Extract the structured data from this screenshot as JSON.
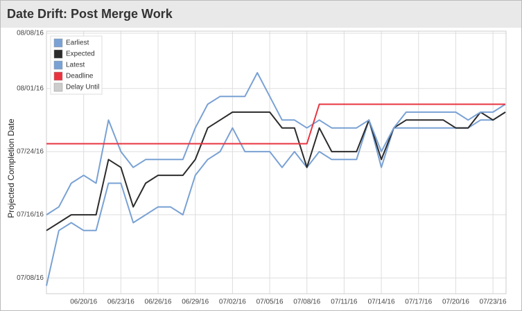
{
  "chart_data": {
    "type": "line",
    "title": "Date Drift: Post Merge Work",
    "y_label": "Projected Completion Date",
    "x": [
      "06/17/16",
      "06/18/16",
      "06/19/16",
      "06/20/16",
      "06/21/16",
      "06/22/16",
      "06/23/16",
      "06/24/16",
      "06/25/16",
      "06/26/16",
      "06/27/16",
      "06/28/16",
      "06/29/16",
      "06/30/16",
      "07/01/16",
      "07/02/16",
      "07/03/16",
      "07/04/16",
      "07/05/16",
      "07/06/16",
      "07/07/16",
      "07/08/16",
      "07/09/16",
      "07/10/16",
      "07/11/16",
      "07/12/16",
      "07/13/16",
      "07/14/16",
      "07/15/16",
      "07/16/16",
      "07/17/16",
      "07/18/16",
      "07/19/16",
      "07/20/16",
      "07/21/16",
      "07/22/16",
      "07/23/16",
      "07/24/16"
    ],
    "xticks": [
      "06/20/16",
      "06/23/16",
      "06/26/16",
      "06/29/16",
      "07/02/16",
      "07/05/16",
      "07/08/16",
      "07/11/16",
      "07/14/16",
      "07/17/16",
      "07/20/16",
      "07/23/16"
    ],
    "ylim": [
      "07/06/16",
      "08/08/16"
    ],
    "yticks": [
      "07/08/16",
      "07/16/16",
      "07/24/16",
      "08/01/16",
      "08/08/16"
    ],
    "grid": true,
    "legend": "top-left",
    "series": [
      {
        "name": "Earliest",
        "color": "#79a1d4",
        "values": [
          "07/07/16",
          "07/14/16",
          "07/15/16",
          "07/14/16",
          "07/14/16",
          "07/20/16",
          "07/20/16",
          "07/15/16",
          "07/16/16",
          "07/17/16",
          "07/17/16",
          "07/16/16",
          "07/21/16",
          "07/23/16",
          "07/24/16",
          "07/27/16",
          "07/24/16",
          "07/24/16",
          "07/24/16",
          "07/22/16",
          "07/24/16",
          "07/22/16",
          "07/24/16",
          "07/23/16",
          "07/23/16",
          "07/23/16",
          "07/28/16",
          "07/22/16",
          "07/27/16",
          "07/27/16",
          "07/27/16",
          "07/27/16",
          "07/27/16",
          "07/27/16",
          "07/27/16",
          "07/28/16",
          "07/28/16",
          "07/29/16"
        ]
      },
      {
        "name": "Expected",
        "color": "#2b2b2b",
        "values": [
          "07/14/16",
          "07/15/16",
          "07/16/16",
          "07/16/16",
          "07/16/16",
          "07/23/16",
          "07/22/16",
          "07/17/16",
          "07/20/16",
          "07/21/16",
          "07/21/16",
          "07/21/16",
          "07/23/16",
          "07/27/16",
          "07/28/16",
          "07/29/16",
          "07/29/16",
          "07/29/16",
          "07/29/16",
          "07/27/16",
          "07/27/16",
          "07/22/16",
          "07/27/16",
          "07/24/16",
          "07/24/16",
          "07/24/16",
          "07/28/16",
          "07/23/16",
          "07/27/16",
          "07/28/16",
          "07/28/16",
          "07/28/16",
          "07/28/16",
          "07/27/16",
          "07/27/16",
          "07/29/16",
          "07/28/16",
          "07/29/16"
        ]
      },
      {
        "name": "Latest",
        "color": "#79a1d4",
        "values": [
          "07/16/16",
          "07/17/16",
          "07/20/16",
          "07/21/16",
          "07/20/16",
          "07/28/16",
          "07/24/16",
          "07/22/16",
          "07/23/16",
          "07/23/16",
          "07/23/16",
          "07/23/16",
          "07/27/16",
          "07/30/16",
          "07/31/16",
          "07/31/16",
          "07/31/16",
          "08/03/16",
          "07/31/16",
          "07/28/16",
          "07/28/16",
          "07/27/16",
          "07/28/16",
          "07/27/16",
          "07/27/16",
          "07/27/16",
          "07/28/16",
          "07/24/16",
          "07/27/16",
          "07/29/16",
          "07/29/16",
          "07/29/16",
          "07/29/16",
          "07/29/16",
          "07/28/16",
          "07/29/16",
          "07/29/16",
          "07/30/16"
        ]
      },
      {
        "name": "Deadline",
        "color": "#e8333f",
        "values": [
          "07/25/16",
          "07/25/16",
          "07/25/16",
          "07/25/16",
          "07/25/16",
          "07/25/16",
          "07/25/16",
          "07/25/16",
          "07/25/16",
          "07/25/16",
          "07/25/16",
          "07/25/16",
          "07/25/16",
          "07/25/16",
          "07/25/16",
          "07/25/16",
          "07/25/16",
          "07/25/16",
          "07/25/16",
          "07/25/16",
          "07/25/16",
          "07/25/16",
          "07/30/16",
          "07/30/16",
          "07/30/16",
          "07/30/16",
          "07/30/16",
          "07/30/16",
          "07/30/16",
          "07/30/16",
          "07/30/16",
          "07/30/16",
          "07/30/16",
          "07/30/16",
          "07/30/16",
          "07/30/16",
          "07/30/16",
          "07/30/16"
        ]
      },
      {
        "name": "Delay Until",
        "color": "#cccccc",
        "values": [
          null,
          null,
          null,
          null,
          null,
          null,
          null,
          null,
          null,
          null,
          null,
          null,
          null,
          null,
          null,
          null,
          null,
          null,
          null,
          null,
          null,
          null,
          null,
          null,
          null,
          null,
          null,
          null,
          null,
          null,
          null,
          null,
          null,
          null,
          null,
          null,
          null,
          null
        ]
      }
    ]
  }
}
